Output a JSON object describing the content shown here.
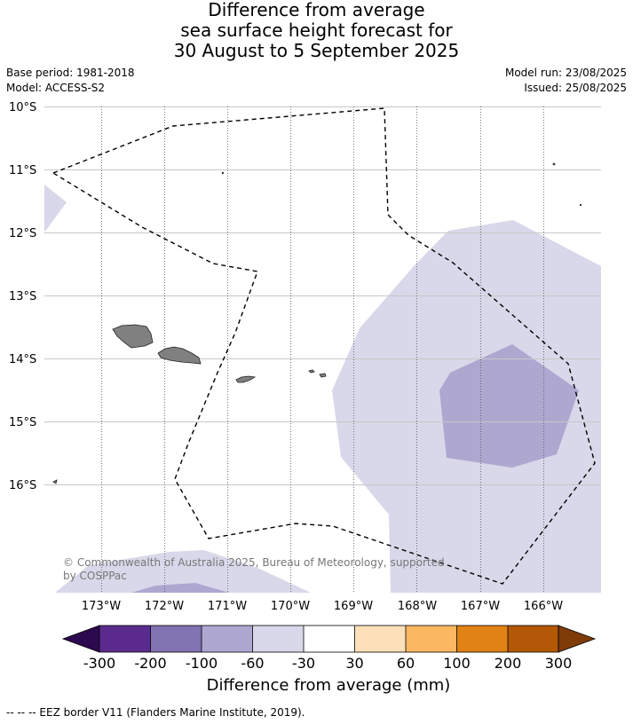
{
  "title": {
    "line1": "Difference from average",
    "line2": "sea surface height forecast for",
    "line3": "30 August to 5 September 2025"
  },
  "meta": {
    "base_period": "Base period: 1981-2018",
    "model": "Model: ACCESS-S2",
    "model_run": "Model run: 23/08/2025",
    "issued": "Issued: 25/08/2025"
  },
  "map": {
    "lat_labels": [
      "10°S",
      "11°S",
      "12°S",
      "13°S",
      "14°S",
      "15°S",
      "16°S"
    ],
    "lon_labels": [
      "173°W",
      "172°W",
      "171°W",
      "170°W",
      "169°W",
      "168°W",
      "167°W",
      "166°W"
    ],
    "land_color": "#808080",
    "credit_line1": "© Commonwealth of Australia 2025, Bureau of Meteorology, supported",
    "credit_line2": "by COSPPac"
  },
  "colorbar": {
    "ticks": [
      "-300",
      "-200",
      "-100",
      "-60",
      "-30",
      "30",
      "60",
      "100",
      "200",
      "300"
    ],
    "colors": [
      "#2d0a4f",
      "#5b2a8e",
      "#8172b1",
      "#aea7d0",
      "#d8d8ea",
      "#ffffff",
      "#fde0b9",
      "#fbb761",
      "#e08214",
      "#b35806",
      "#7f3b08"
    ],
    "label": "Difference from average (mm)"
  },
  "footer": {
    "legend_line": "--  --  -- EEZ border V11 (Flanders Marine Institute, 2019)."
  }
}
